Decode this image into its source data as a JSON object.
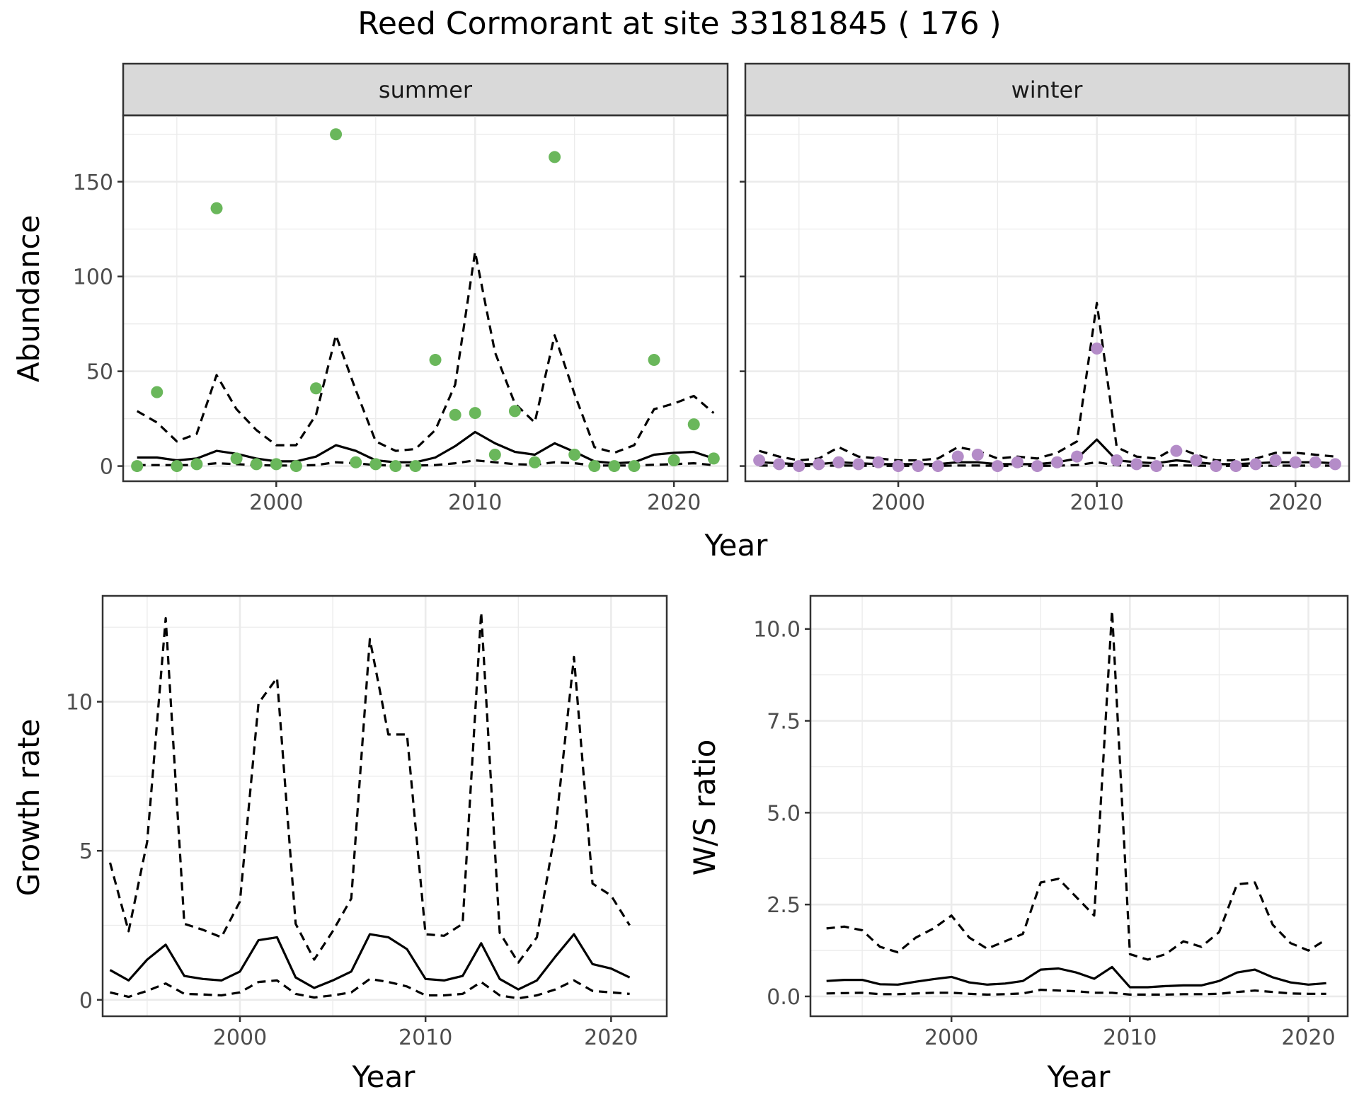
{
  "figure": {
    "title": "Reed Cormorant at site 33181845 ( 176 )"
  },
  "chart_data": [
    {
      "id": "abundance",
      "type": "line",
      "subtype": "faceted scatter + line",
      "ylabel": "Abundance",
      "xlabel": "Year",
      "xlim": [
        1992.3,
        2022.7
      ],
      "ylim": [
        -8,
        185
      ],
      "xticks": [
        2000,
        2010,
        2020
      ],
      "yticks": [
        0,
        50,
        100,
        150
      ],
      "grid": true,
      "facets": [
        {
          "strip": "summer",
          "point_color": "#6ab75b",
          "points": {
            "x": [
              1993,
              1994,
              1995,
              1996,
              1997,
              1998,
              1999,
              2000,
              2001,
              2002,
              2003,
              2004,
              2005,
              2006,
              2007,
              2008,
              2009,
              2010,
              2011,
              2012,
              2013,
              2014,
              2015,
              2016,
              2017,
              2018,
              2019,
              2020,
              2021,
              2022
            ],
            "y": [
              0,
              39,
              0,
              1,
              136,
              4,
              1,
              1,
              0,
              41,
              175,
              2,
              1,
              0,
              0,
              56,
              27,
              28,
              6,
              29,
              2,
              163,
              6,
              0,
              0,
              0,
              56,
              3,
              22,
              4
            ]
          },
          "series": [
            {
              "style": "solid",
              "x": [
                1993,
                1994,
                1995,
                1996,
                1997,
                1998,
                1999,
                2000,
                2001,
                2002,
                2003,
                2004,
                2005,
                2006,
                2007,
                2008,
                2009,
                2010,
                2011,
                2012,
                2013,
                2014,
                2015,
                2016,
                2017,
                2018,
                2019,
                2020,
                2021,
                2022
              ],
              "values": [
                4.5,
                4.5,
                3,
                4,
                8,
                6.5,
                4,
                2.5,
                2.5,
                5,
                11,
                8,
                3,
                2,
                2,
                4.5,
                10.5,
                18,
                12,
                7.5,
                6,
                12,
                7.5,
                2.5,
                1.5,
                2,
                6,
                7,
                7.5,
                4
              ]
            },
            {
              "style": "dashed",
              "x": [
                1993,
                1994,
                1995,
                1996,
                1997,
                1998,
                1999,
                2000,
                2001,
                2002,
                2003,
                2004,
                2005,
                2006,
                2007,
                2008,
                2009,
                2010,
                2011,
                2012,
                2013,
                2014,
                2015,
                2016,
                2017,
                2018,
                2019,
                2020,
                2021,
                2022
              ],
              "values": [
                29,
                23,
                13,
                17,
                48,
                30,
                19,
                11,
                11,
                27,
                69,
                40,
                13,
                8,
                9,
                19,
                43,
                113,
                60,
                33,
                23,
                69,
                38,
                10,
                7,
                11,
                30,
                33,
                37,
                28
              ]
            },
            {
              "style": "dashed",
              "x": [
                1993,
                1994,
                1995,
                1996,
                1997,
                1998,
                1999,
                2000,
                2001,
                2002,
                2003,
                2004,
                2005,
                2006,
                2007,
                2008,
                2009,
                2010,
                2011,
                2012,
                2013,
                2014,
                2015,
                2016,
                2017,
                2018,
                2019,
                2020,
                2021,
                2022
              ],
              "values": [
                0.5,
                0.5,
                0.5,
                0.5,
                1.5,
                1,
                0.5,
                0.3,
                0.3,
                0.5,
                2,
                1.5,
                0.5,
                0.3,
                0.3,
                0.5,
                1.5,
                3,
                2,
                1,
                0.7,
                2,
                1.5,
                0.3,
                0.3,
                0.3,
                0.7,
                1,
                1.5,
                0.5
              ]
            }
          ]
        },
        {
          "strip": "winter",
          "point_color": "#b48cc8",
          "points": {
            "x": [
              1993,
              1994,
              1995,
              1996,
              1997,
              1998,
              1999,
              2000,
              2001,
              2002,
              2003,
              2004,
              2005,
              2006,
              2007,
              2008,
              2009,
              2010,
              2011,
              2012,
              2013,
              2014,
              2015,
              2016,
              2017,
              2018,
              2019,
              2020,
              2021,
              2022
            ],
            "y": [
              3,
              1,
              0,
              1,
              2,
              1,
              2,
              0,
              0,
              0,
              5,
              6,
              0,
              2,
              0,
              2,
              5,
              62,
              3,
              1,
              0,
              8,
              3,
              0,
              0,
              1,
              3,
              2,
              2,
              1
            ]
          },
          "series": [
            {
              "style": "solid",
              "x": [
                1993,
                1994,
                1995,
                1996,
                1997,
                1998,
                1999,
                2000,
                2001,
                2002,
                2003,
                2004,
                2005,
                2006,
                2007,
                2008,
                2009,
                2010,
                2011,
                2012,
                2013,
                2014,
                2015,
                2016,
                2017,
                2018,
                2019,
                2020,
                2021,
                2022
              ],
              "values": [
                2,
                1.5,
                1,
                1,
                2,
                1.5,
                1,
                1,
                1,
                1,
                2,
                2,
                1,
                1,
                1,
                2,
                4,
                14,
                3,
                2,
                1.5,
                3,
                2,
                1,
                1,
                1.5,
                2,
                2,
                2,
                1.5
              ]
            },
            {
              "style": "dashed",
              "x": [
                1993,
                1994,
                1995,
                1996,
                1997,
                1998,
                1999,
                2000,
                2001,
                2002,
                2003,
                2004,
                2005,
                2006,
                2007,
                2008,
                2009,
                2010,
                2011,
                2012,
                2013,
                2014,
                2015,
                2016,
                2017,
                2018,
                2019,
                2020,
                2021,
                2022
              ],
              "values": [
                8,
                5,
                3,
                4,
                10,
                5,
                4,
                3,
                3,
                4,
                10,
                8,
                4,
                5,
                4,
                7,
                13,
                86,
                10,
                5,
                4,
                10,
                6,
                3,
                3,
                4,
                7,
                7,
                6,
                5
              ]
            },
            {
              "style": "dashed",
              "x": [
                1993,
                1994,
                1995,
                1996,
                1997,
                1998,
                1999,
                2000,
                2001,
                2002,
                2003,
                2004,
                2005,
                2006,
                2007,
                2008,
                2009,
                2010,
                2011,
                2012,
                2013,
                2014,
                2015,
                2016,
                2017,
                2018,
                2019,
                2020,
                2021,
                2022
              ],
              "values": [
                0.3,
                0.2,
                0.1,
                0.1,
                0.3,
                0.2,
                0.1,
                0.1,
                0.1,
                0.1,
                0.3,
                0.3,
                0.1,
                0.1,
                0.1,
                0.2,
                0.5,
                2,
                0.4,
                0.2,
                0.1,
                0.4,
                0.2,
                0.1,
                0.1,
                0.1,
                0.2,
                0.2,
                0.2,
                0.2
              ]
            }
          ]
        }
      ]
    },
    {
      "id": "growth",
      "type": "line",
      "ylabel": "Growth rate",
      "xlabel": "Year",
      "xlim": [
        1992.6,
        2023
      ],
      "ylim": [
        -0.55,
        13.55
      ],
      "xticks": [
        2000,
        2010,
        2020
      ],
      "yticks": [
        0,
        5,
        10
      ],
      "grid": true,
      "x": [
        1993,
        1994,
        1995,
        1996,
        1997,
        1998,
        1999,
        2000,
        2001,
        2002,
        2003,
        2004,
        2005,
        2006,
        2007,
        2008,
        2009,
        2010,
        2011,
        2012,
        2013,
        2014,
        2015,
        2016,
        2017,
        2018,
        2019,
        2020,
        2021
      ],
      "series": [
        {
          "style": "solid",
          "values": [
            1,
            0.65,
            1.35,
            1.85,
            0.8,
            0.7,
            0.65,
            0.95,
            2,
            2.1,
            0.75,
            0.4,
            0.65,
            0.95,
            2.2,
            2.1,
            1.7,
            0.7,
            0.65,
            0.8,
            1.9,
            0.7,
            0.35,
            0.65,
            1.45,
            2.2,
            1.2,
            1.05,
            0.75
          ]
        },
        {
          "style": "dashed",
          "values": [
            4.6,
            2.3,
            5.3,
            12.8,
            2.55,
            2.35,
            2.1,
            3.3,
            9.95,
            10.8,
            2.55,
            1.35,
            2.3,
            3.4,
            12.1,
            8.9,
            8.9,
            2.2,
            2.15,
            2.55,
            13,
            2.25,
            1.25,
            2.1,
            5.7,
            11.5,
            3.9,
            3.5,
            2.5
          ]
        },
        {
          "style": "dashed",
          "values": [
            0.25,
            0.1,
            0.3,
            0.55,
            0.2,
            0.18,
            0.15,
            0.25,
            0.6,
            0.65,
            0.2,
            0.08,
            0.15,
            0.25,
            0.7,
            0.6,
            0.45,
            0.15,
            0.15,
            0.2,
            0.6,
            0.15,
            0.05,
            0.15,
            0.35,
            0.65,
            0.3,
            0.25,
            0.2
          ]
        }
      ]
    },
    {
      "id": "ratio",
      "type": "line",
      "ylabel": "W/S ratio",
      "xlabel": "Year",
      "xlim": [
        1992.1,
        2022.2
      ],
      "ylim": [
        -0.54,
        10.9
      ],
      "xticks": [
        2000,
        2010,
        2020
      ],
      "yticks": [
        0.0,
        2.5,
        5.0,
        7.5,
        10.0
      ],
      "ytick_labels": [
        "0.0",
        "2.5",
        "5.0",
        "7.5",
        "10.0"
      ],
      "grid": true,
      "x": [
        1993,
        1994,
        1995,
        1996,
        1997,
        1998,
        1999,
        2000,
        2001,
        2002,
        2003,
        2004,
        2005,
        2006,
        2007,
        2008,
        2009,
        2010,
        2011,
        2012,
        2013,
        2014,
        2015,
        2016,
        2017,
        2018,
        2019,
        2020,
        2021
      ],
      "series": [
        {
          "style": "solid",
          "values": [
            0.42,
            0.45,
            0.45,
            0.33,
            0.32,
            0.4,
            0.47,
            0.53,
            0.38,
            0.32,
            0.35,
            0.42,
            0.73,
            0.76,
            0.65,
            0.48,
            0.8,
            0.25,
            0.25,
            0.28,
            0.3,
            0.3,
            0.42,
            0.65,
            0.73,
            0.52,
            0.38,
            0.32,
            0.36
          ]
        },
        {
          "style": "dashed",
          "values": [
            1.85,
            1.9,
            1.8,
            1.35,
            1.2,
            1.6,
            1.85,
            2.2,
            1.6,
            1.3,
            1.5,
            1.7,
            3.1,
            3.2,
            2.7,
            2.2,
            10.5,
            1.15,
            1.0,
            1.15,
            1.5,
            1.35,
            1.75,
            3.05,
            3.1,
            1.95,
            1.45,
            1.25,
            1.55
          ]
        },
        {
          "style": "dashed",
          "values": [
            0.08,
            0.09,
            0.1,
            0.06,
            0.06,
            0.08,
            0.1,
            0.1,
            0.07,
            0.05,
            0.06,
            0.08,
            0.18,
            0.16,
            0.14,
            0.1,
            0.1,
            0.05,
            0.05,
            0.05,
            0.06,
            0.06,
            0.07,
            0.12,
            0.16,
            0.12,
            0.08,
            0.07,
            0.07
          ]
        }
      ]
    }
  ]
}
